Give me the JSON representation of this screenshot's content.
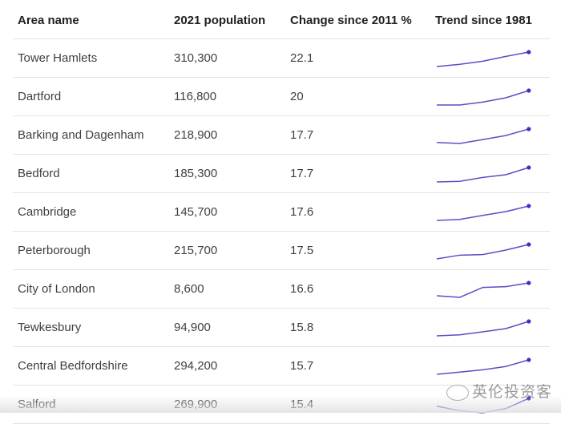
{
  "headers": [
    "Area name",
    "2021 population",
    "Change since 2011 %",
    "Trend since 1981"
  ],
  "accent_color": "#5b4fc4",
  "rows": [
    {
      "area": "Tower Hamlets",
      "population": "310,300",
      "change": "22.1",
      "trend": [
        0,
        0.15,
        0.37,
        0.7,
        1
      ]
    },
    {
      "area": "Dartford",
      "population": "116,800",
      "change": "20",
      "trend": [
        0,
        0,
        0.2,
        0.5,
        1
      ]
    },
    {
      "area": "Barking and Dagenham",
      "population": "218,900",
      "change": "17.7",
      "trend": [
        0.07,
        0,
        0.27,
        0.55,
        1
      ]
    },
    {
      "area": "Bedford",
      "population": "185,300",
      "change": "17.7",
      "trend": [
        0,
        0.04,
        0.31,
        0.5,
        1
      ]
    },
    {
      "area": "Cambridge",
      "population": "145,700",
      "change": "17.6",
      "trend": [
        0,
        0.07,
        0.35,
        0.61,
        1
      ]
    },
    {
      "area": "Peterborough",
      "population": "215,700",
      "change": "17.5",
      "trend": [
        0,
        0.26,
        0.3,
        0.61,
        1
      ]
    },
    {
      "area": "City of London",
      "population": "8,600",
      "change": "16.6",
      "trend": [
        0.11,
        0,
        0.69,
        0.74,
        1
      ]
    },
    {
      "area": "Tewkesbury",
      "population": "94,900",
      "change": "15.8",
      "trend": [
        0,
        0.07,
        0.28,
        0.5,
        1
      ]
    },
    {
      "area": "Central Bedfordshire",
      "population": "294,200",
      "change": "15.7",
      "trend": [
        0,
        0.15,
        0.31,
        0.54,
        1
      ]
    },
    {
      "area": "Salford",
      "population": "269,900",
      "change": "15.4",
      "trend": [
        0.46,
        0.14,
        0,
        0.29,
        1
      ]
    }
  ],
  "watermark": "英伦投资客"
}
